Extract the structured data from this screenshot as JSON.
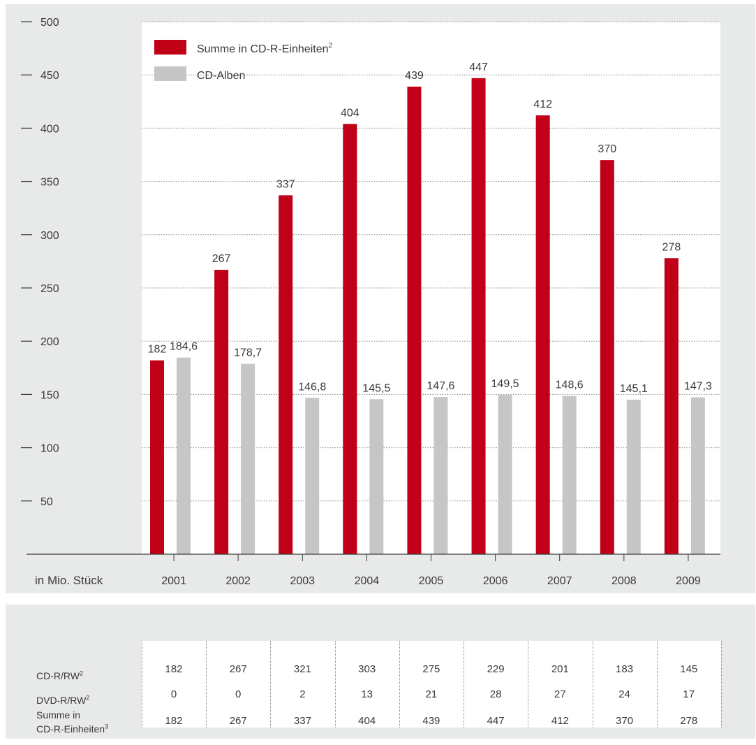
{
  "chart_data": {
    "type": "bar",
    "categories": [
      "2001",
      "2002",
      "2003",
      "2004",
      "2005",
      "2006",
      "2007",
      "2008",
      "2009"
    ],
    "series": [
      {
        "name": "Summe in CD-R-Einheiten",
        "name_sup": "2",
        "color": "#bf0017",
        "values": [
          182,
          267,
          337,
          404,
          439,
          447,
          412,
          370,
          278
        ],
        "labels": [
          "182",
          "267",
          "337",
          "404",
          "439",
          "447",
          "412",
          "370",
          "278"
        ]
      },
      {
        "name": "CD-Alben",
        "name_sup": "",
        "color": "#c6c6c6",
        "values": [
          184.6,
          178.7,
          146.8,
          145.5,
          147.6,
          149.5,
          148.6,
          145.1,
          147.3
        ],
        "labels": [
          "184,6",
          "178,7",
          "146,8",
          "145,5",
          "147,6",
          "149,5",
          "148,6",
          "145,1",
          "147,3"
        ]
      }
    ],
    "yticks": [
      "500",
      "450",
      "400",
      "350",
      "300",
      "250",
      "200",
      "150",
      "100",
      "50"
    ],
    "ylim": [
      0,
      500
    ],
    "unit_label": "in Mio. Stück",
    "grid": true,
    "legend_position": "top-left"
  },
  "table": {
    "years": [
      "2001",
      "2002",
      "2003",
      "2004",
      "2005",
      "2006",
      "2007",
      "2008",
      "2009"
    ],
    "rows": [
      {
        "label": "CD-R/RW",
        "sup": "2",
        "values": [
          "182",
          "267",
          "321",
          "303",
          "275",
          "229",
          "201",
          "183",
          "145"
        ]
      },
      {
        "label": "DVD-R/RW",
        "sup": "2",
        "values": [
          "0",
          "0",
          "2",
          "13",
          "21",
          "28",
          "27",
          "24",
          "17"
        ]
      },
      {
        "label_line1": "Summe in",
        "label_line2": "CD-R-Einheiten",
        "sup": "3",
        "values": [
          "182",
          "267",
          "337",
          "404",
          "439",
          "447",
          "412",
          "370",
          "278"
        ]
      }
    ]
  }
}
